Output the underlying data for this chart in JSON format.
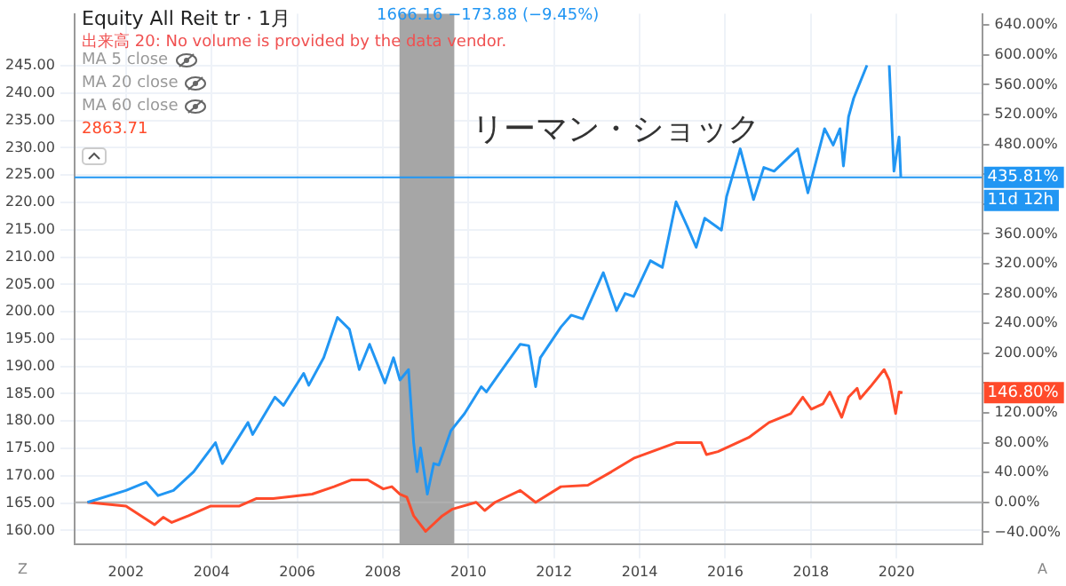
{
  "chart_data": {
    "type": "line",
    "title": "Equity All Reit tr · 1月",
    "annotations": [
      "出来高 20: No volume is provided by the data vendor.",
      "MA 5 close",
      "MA 20 close",
      "MA 60 close",
      "1666.16 −173.88 (−9.45%)",
      "2863.71",
      "11d 12h",
      "146.80%",
      "Z",
      "A"
    ],
    "series": [
      {
        "color": "#2196f3",
        "axis": "y2",
        "x": [
          2001.1,
          2002.0,
          2002.47,
          2002.75,
          2003.11,
          2003.58,
          2004.09,
          2004.25,
          2004.85,
          2004.96,
          2005.48,
          2005.68,
          2006.15,
          2006.27,
          2006.62,
          2006.94,
          2007.22,
          2007.45,
          2007.69,
          2008.05,
          2008.25,
          2008.4,
          2008.6,
          2008.72,
          2008.8,
          2008.88,
          2009.04,
          2009.19,
          2009.31,
          2009.59,
          2009.91,
          2010.3,
          2010.42,
          2010.7,
          2011.21,
          2011.41,
          2011.57,
          2011.68,
          2012.16,
          2012.4,
          2012.67,
          2013.15,
          2013.46,
          2013.66,
          2013.86,
          2014.25,
          2014.53,
          2014.85,
          2015.12,
          2015.32,
          2015.52,
          2015.91,
          2016.03,
          2016.35,
          2016.66,
          2016.9,
          2017.14,
          2017.69,
          2017.93,
          2018.32,
          2018.52,
          2018.68,
          2018.76,
          2018.88,
          2019.0,
          2019.31,
          2019.6,
          2019.83,
          2019.94,
          2020.06,
          2020.1
        ],
        "values": [
          0,
          16,
          27,
          9,
          16,
          41,
          80,
          52,
          107,
          91,
          141,
          130,
          173,
          157,
          194,
          248,
          232,
          178,
          212,
          160,
          194,
          164,
          178,
          80,
          41,
          73,
          11,
          52,
          50,
          96,
          119,
          155,
          148,
          171,
          212,
          210,
          155,
          194,
          235,
          251,
          246,
          308,
          257,
          280,
          276,
          324,
          315,
          403,
          369,
          342,
          381,
          365,
          410,
          474,
          406,
          449,
          444,
          474,
          415,
          501,
          479,
          501,
          451,
          517,
          542,
          586,
          null,
          586,
          444,
          490,
          436
        ]
      },
      {
        "color": "#ff4a2a",
        "axis": "y2",
        "x": [
          2001.1,
          2002.0,
          2002.67,
          2002.87,
          2003.07,
          2003.46,
          2003.98,
          2004.65,
          2005.04,
          2005.44,
          2006.35,
          2006.86,
          2007.26,
          2007.65,
          2008.01,
          2008.21,
          2008.4,
          2008.56,
          2008.72,
          2009.0,
          2009.39,
          2009.63,
          2010.18,
          2010.38,
          2010.62,
          2011.21,
          2011.57,
          2012.16,
          2012.79,
          2013.34,
          2013.86,
          2014.85,
          2015.44,
          2015.56,
          2015.83,
          2016.55,
          2017.02,
          2017.53,
          2017.81,
          2018.01,
          2018.28,
          2018.44,
          2018.72,
          2018.88,
          2019.08,
          2019.15,
          2019.39,
          2019.71,
          2019.83,
          2019.98,
          2020.06,
          2020.14
        ],
        "values": [
          0,
          -5,
          -30,
          -20,
          -27,
          -18,
          -5,
          -5,
          5,
          5,
          11,
          21,
          30,
          30,
          18,
          21,
          11,
          7,
          -18,
          -39,
          -18,
          -9,
          0,
          -11,
          0,
          16,
          0,
          21,
          23,
          41,
          59,
          80,
          80,
          64,
          68,
          87,
          107,
          119,
          141,
          125,
          132,
          148,
          114,
          141,
          153,
          139,
          155,
          178,
          164,
          119,
          148,
          147
        ]
      }
    ],
    "xlim": [
      2000.8,
      2022
    ],
    "xticks": [
      2002,
      2004,
      2006,
      2008,
      2010,
      2012,
      2014,
      2016,
      2018,
      2020
    ],
    "ylim": [
      157.5,
      254.5
    ],
    "yticks": [
      {
        "value": 160,
        "label": "160.00"
      },
      {
        "value": 165,
        "label": "165.00"
      },
      {
        "value": 170,
        "label": "170.00"
      },
      {
        "value": 175,
        "label": "175.00"
      },
      {
        "value": 180,
        "label": "180.00"
      },
      {
        "value": 185,
        "label": "185.00"
      },
      {
        "value": 190,
        "label": "190.00"
      },
      {
        "value": 195,
        "label": "195.00"
      },
      {
        "value": 200,
        "label": "200.00"
      },
      {
        "value": 205,
        "label": "205.00"
      },
      {
        "value": 210,
        "label": "210.00"
      },
      {
        "value": 215,
        "label": "215.00"
      },
      {
        "value": 220,
        "label": "220.00"
      },
      {
        "value": 225,
        "label": "225.00"
      },
      {
        "value": 230,
        "label": "230.00"
      },
      {
        "value": 235,
        "label": "235.00"
      },
      {
        "value": 240,
        "label": "240.00"
      },
      {
        "value": 245,
        "label": "245.00"
      }
    ],
    "y2lim": [
      -56,
      655
    ],
    "y2ticks": [
      {
        "value": -40,
        "label": "−40.00%"
      },
      {
        "value": 0,
        "label": "0.00%"
      },
      {
        "value": 40,
        "label": "40.00%"
      },
      {
        "value": 80,
        "label": "80.00%"
      },
      {
        "value": 120,
        "label": "120.00%"
      },
      {
        "value": 160,
        "label": null
      },
      {
        "value": 200,
        "label": "200.00%"
      },
      {
        "value": 240,
        "label": "240.00%"
      },
      {
        "value": 280,
        "label": "280.00%"
      },
      {
        "value": 320,
        "label": "320.00%"
      },
      {
        "value": 360,
        "label": "360.00%"
      },
      {
        "value": 400,
        "label": null
      },
      {
        "value": 440,
        "label": null
      },
      {
        "value": 480,
        "label": "480.00%"
      },
      {
        "value": 520,
        "label": "520.00%"
      },
      {
        "value": 560,
        "label": "560.00%"
      },
      {
        "value": 600,
        "label": "600.00%"
      },
      {
        "value": 640,
        "label": "640.00%"
      }
    ],
    "bands": [
      {
        "axis": "x",
        "from": 2008.39,
        "to": 2009.67,
        "label": "リーマン・ショック",
        "color": "#a6a6a6"
      }
    ],
    "ref_lines": [
      {
        "axis": "y2",
        "value": 435.81,
        "label": "435.81%",
        "color": "#2196f3"
      },
      {
        "axis": "y2",
        "value": 0,
        "color": "#b0b0b0"
      }
    ],
    "grid": true,
    "line_style": "solid"
  }
}
